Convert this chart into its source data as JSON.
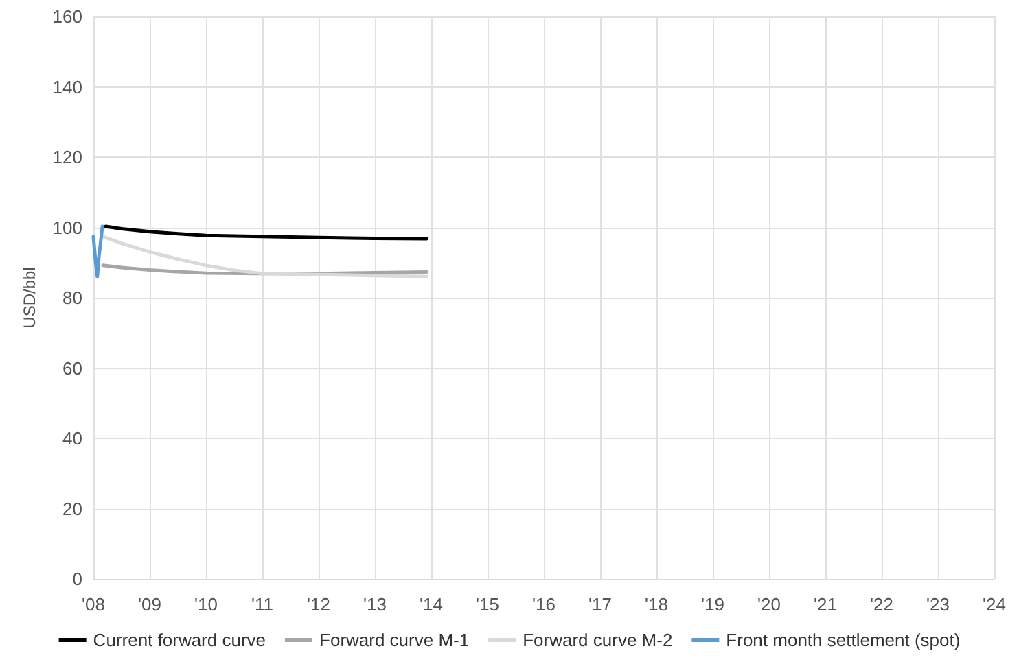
{
  "chart_data": {
    "type": "line",
    "ylabel": "USD/bbl",
    "xlim": [
      2008,
      2024
    ],
    "xticks": [
      {
        "value": 2008,
        "label": "'08"
      },
      {
        "value": 2009,
        "label": "'09"
      },
      {
        "value": 2010,
        "label": "'10"
      },
      {
        "value": 2011,
        "label": "'11"
      },
      {
        "value": 2012,
        "label": "'12"
      },
      {
        "value": 2013,
        "label": "'13"
      },
      {
        "value": 2014,
        "label": "'14"
      },
      {
        "value": 2015,
        "label": "'15"
      },
      {
        "value": 2016,
        "label": "'16"
      },
      {
        "value": 2017,
        "label": "'17"
      },
      {
        "value": 2018,
        "label": "'18"
      },
      {
        "value": 2019,
        "label": "'19"
      },
      {
        "value": 2020,
        "label": "'20"
      },
      {
        "value": 2021,
        "label": "'21"
      },
      {
        "value": 2022,
        "label": "'22"
      },
      {
        "value": 2023,
        "label": "'23"
      },
      {
        "value": 2024,
        "label": "'24"
      }
    ],
    "ylim": [
      0,
      160
    ],
    "yticks": [
      0,
      20,
      40,
      60,
      80,
      100,
      120,
      140,
      160
    ],
    "grid": true,
    "legend": "bottom",
    "marker": "none",
    "line_style": "solid",
    "series": [
      {
        "name": "Current forward curve",
        "color": "#000000",
        "x": [
          2008.22,
          2008.5,
          2009,
          2009.5,
          2010,
          2011,
          2012,
          2013,
          2013.92
        ],
        "values": [
          100.3,
          99.6,
          98.8,
          98.2,
          97.7,
          97.4,
          97.1,
          96.9,
          96.8
        ]
      },
      {
        "name": "Forward curve M-1",
        "color": "#a6a6a6",
        "x": [
          2008.17,
          2008.5,
          2009,
          2009.5,
          2010,
          2011,
          2012,
          2013,
          2013.92
        ],
        "values": [
          89.2,
          88.6,
          87.9,
          87.4,
          87.0,
          86.9,
          86.9,
          87.1,
          87.3
        ]
      },
      {
        "name": "Forward curve M-2",
        "color": "#d9d9d9",
        "x": [
          2008.17,
          2008.5,
          2009,
          2009.5,
          2010,
          2010.5,
          2011,
          2012,
          2013,
          2013.92
        ],
        "values": [
          97.4,
          95.5,
          93.0,
          91.0,
          89.2,
          87.8,
          86.9,
          86.6,
          86.3,
          86.0
        ]
      },
      {
        "name": "Front month settlement (spot)",
        "color": "#5b9bd5",
        "x": [
          2008.0,
          2008.04,
          2008.07,
          2008.1,
          2008.13,
          2008.16
        ],
        "values": [
          97.3,
          90.0,
          86.0,
          92.0,
          96.0,
          100.3
        ]
      }
    ]
  }
}
